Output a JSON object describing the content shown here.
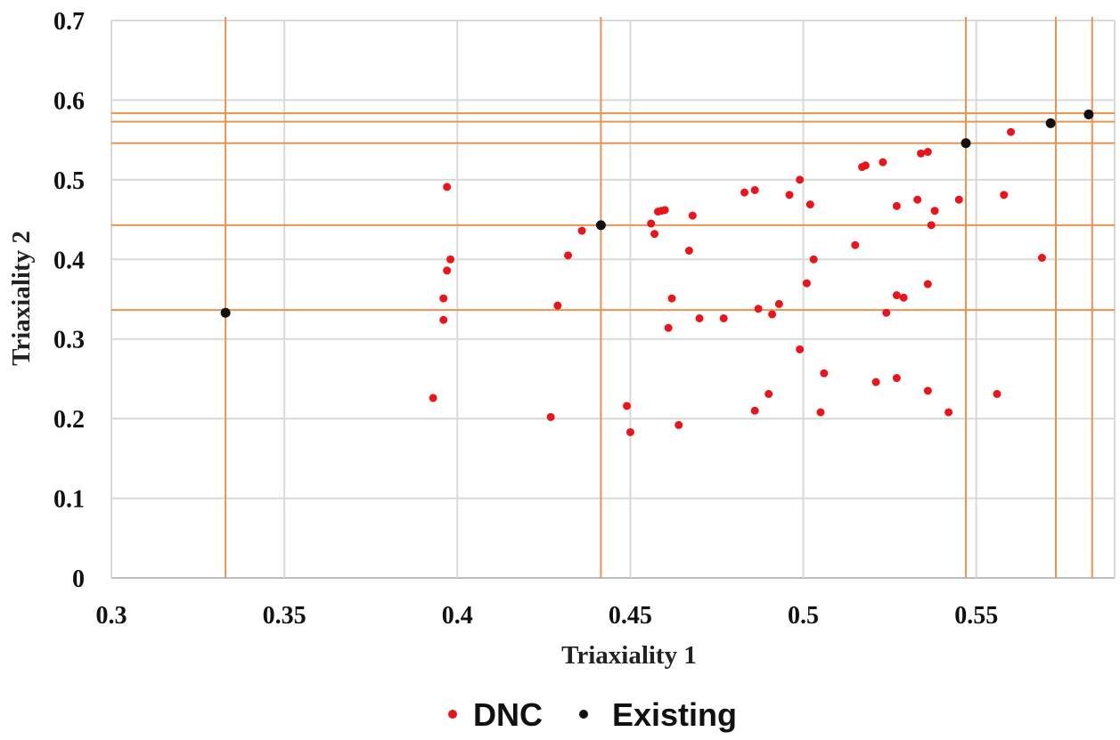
{
  "chart_data": {
    "type": "scatter",
    "xlabel": "Triaxiality 1",
    "ylabel": "Triaxiality 2",
    "xlim": [
      0.3,
      0.59
    ],
    "ylim": [
      0,
      0.7
    ],
    "x_ticks": [
      "0.3",
      "0.35",
      "0.4",
      "0.45",
      "0.5",
      "0.55"
    ],
    "y_ticks": [
      "0",
      "0.1",
      "0.2",
      "0.3",
      "0.4",
      "0.5",
      "0.6",
      "0.7"
    ],
    "grid": true,
    "legend_position": "bottom",
    "series": [
      {
        "name": "DNC",
        "color": "#e8161b",
        "points": [
          [
            0.393,
            0.226
          ],
          [
            0.396,
            0.351
          ],
          [
            0.396,
            0.324
          ],
          [
            0.397,
            0.491
          ],
          [
            0.397,
            0.386
          ],
          [
            0.398,
            0.4
          ],
          [
            0.427,
            0.202
          ],
          [
            0.429,
            0.342
          ],
          [
            0.432,
            0.405
          ],
          [
            0.436,
            0.436
          ],
          [
            0.449,
            0.216
          ],
          [
            0.45,
            0.183
          ],
          [
            0.456,
            0.445
          ],
          [
            0.457,
            0.432
          ],
          [
            0.458,
            0.46
          ],
          [
            0.459,
            0.461
          ],
          [
            0.46,
            0.462
          ],
          [
            0.461,
            0.314
          ],
          [
            0.462,
            0.351
          ],
          [
            0.464,
            0.192
          ],
          [
            0.467,
            0.411
          ],
          [
            0.468,
            0.455
          ],
          [
            0.47,
            0.326
          ],
          [
            0.477,
            0.326
          ],
          [
            0.483,
            0.484
          ],
          [
            0.486,
            0.487
          ],
          [
            0.486,
            0.21
          ],
          [
            0.487,
            0.338
          ],
          [
            0.49,
            0.231
          ],
          [
            0.491,
            0.331
          ],
          [
            0.493,
            0.344
          ],
          [
            0.496,
            0.481
          ],
          [
            0.499,
            0.5
          ],
          [
            0.499,
            0.287
          ],
          [
            0.501,
            0.37
          ],
          [
            0.502,
            0.469
          ],
          [
            0.503,
            0.4
          ],
          [
            0.505,
            0.208
          ],
          [
            0.506,
            0.257
          ],
          [
            0.515,
            0.418
          ],
          [
            0.517,
            0.516
          ],
          [
            0.518,
            0.518
          ],
          [
            0.521,
            0.246
          ],
          [
            0.523,
            0.522
          ],
          [
            0.524,
            0.333
          ],
          [
            0.527,
            0.467
          ],
          [
            0.527,
            0.355
          ],
          [
            0.527,
            0.251
          ],
          [
            0.529,
            0.352
          ],
          [
            0.533,
            0.475
          ],
          [
            0.534,
            0.533
          ],
          [
            0.536,
            0.535
          ],
          [
            0.536,
            0.235
          ],
          [
            0.536,
            0.369
          ],
          [
            0.537,
            0.443
          ],
          [
            0.538,
            0.461
          ],
          [
            0.542,
            0.208
          ],
          [
            0.545,
            0.475
          ],
          [
            0.556,
            0.231
          ],
          [
            0.558,
            0.481
          ],
          [
            0.56,
            0.56
          ],
          [
            0.569,
            0.402
          ]
        ]
      },
      {
        "name": "Existing",
        "color": "#111111",
        "points": [
          [
            0.333,
            0.333
          ],
          [
            0.4415,
            0.443
          ],
          [
            0.547,
            0.546
          ],
          [
            0.5715,
            0.571
          ],
          [
            0.5825,
            0.582
          ]
        ]
      }
    ],
    "reference_lines": {
      "color": "#e99353",
      "vertical_x": [
        0.333,
        0.4415,
        0.547,
        0.573,
        0.5835
      ],
      "horizontal_y": [
        0.3365,
        0.443,
        0.546,
        0.573,
        0.5835
      ]
    }
  }
}
